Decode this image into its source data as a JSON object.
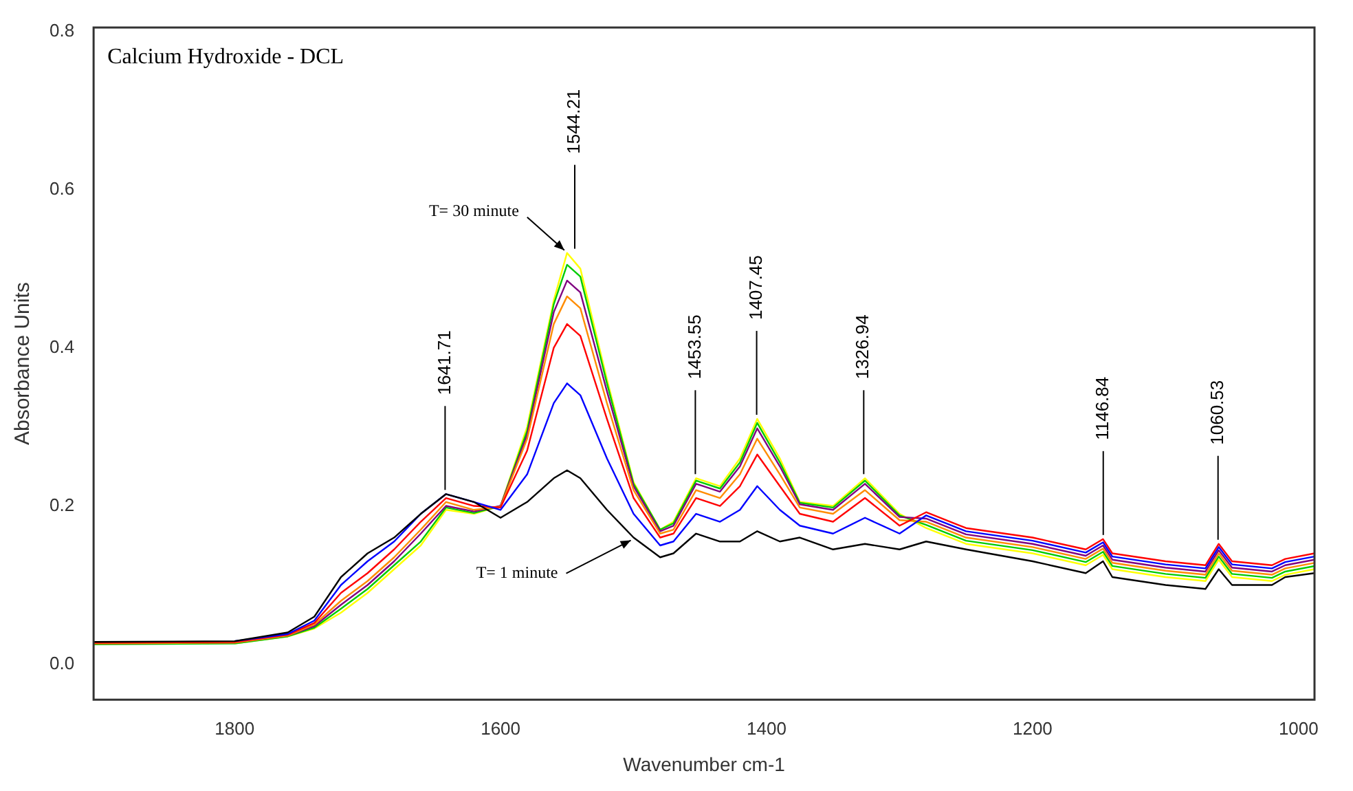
{
  "chart_data": {
    "type": "line",
    "title": "Calcium Hydroxide - DCL",
    "xlabel": "Wavenumber cm-1",
    "ylabel": "Absorbance Units",
    "x": [
      1906,
      1800,
      1760,
      1740,
      1720,
      1700,
      1680,
      1660,
      1641,
      1620,
      1600,
      1580,
      1560,
      1550,
      1540,
      1520,
      1500,
      1480,
      1470,
      1453,
      1435,
      1420,
      1407,
      1390,
      1375,
      1350,
      1326,
      1300,
      1280,
      1250,
      1200,
      1160,
      1147,
      1140,
      1100,
      1070,
      1060,
      1050,
      1020,
      1010,
      988
    ],
    "series": [
      {
        "color": "#000000",
        "values": [
          0.028,
          0.029,
          0.04,
          0.06,
          0.11,
          0.14,
          0.16,
          0.19,
          0.215,
          0.205,
          0.185,
          0.205,
          0.235,
          0.245,
          0.235,
          0.195,
          0.16,
          0.135,
          0.14,
          0.165,
          0.155,
          0.155,
          0.168,
          0.155,
          0.16,
          0.145,
          0.152,
          0.145,
          0.155,
          0.145,
          0.13,
          0.115,
          0.13,
          0.11,
          0.1,
          0.095,
          0.12,
          0.1,
          0.1,
          0.11,
          0.115
        ]
      },
      {
        "color": "#0000ff",
        "values": [
          null,
          0.029,
          0.038,
          0.055,
          0.1,
          0.13,
          0.155,
          0.19,
          0.215,
          0.205,
          0.195,
          0.24,
          0.33,
          0.355,
          0.34,
          0.26,
          0.19,
          0.15,
          0.155,
          0.19,
          0.18,
          0.195,
          0.225,
          0.195,
          0.175,
          0.165,
          0.185,
          0.165,
          0.188,
          0.168,
          0.156,
          0.141,
          0.154,
          0.136,
          0.126,
          0.121,
          0.148,
          0.126,
          0.121,
          0.129,
          0.136
        ]
      },
      {
        "color": "#ff0000",
        "values": [
          0.027,
          0.028,
          0.037,
          0.052,
          0.09,
          0.115,
          0.145,
          0.18,
          0.21,
          0.2,
          0.198,
          0.27,
          0.4,
          0.43,
          0.415,
          0.31,
          0.21,
          0.16,
          0.165,
          0.21,
          0.2,
          0.225,
          0.265,
          0.225,
          0.19,
          0.18,
          0.21,
          0.175,
          0.192,
          0.172,
          0.16,
          0.145,
          0.158,
          0.14,
          0.13,
          0.125,
          0.152,
          0.13,
          0.125,
          0.133,
          0.14
        ]
      },
      {
        "color": "#ff8c00",
        "values": [
          0.026,
          0.027,
          0.036,
          0.05,
          0.08,
          0.105,
          0.135,
          0.17,
          0.205,
          0.195,
          0.199,
          0.285,
          0.43,
          0.465,
          0.45,
          0.33,
          0.22,
          0.165,
          0.17,
          0.22,
          0.21,
          0.24,
          0.285,
          0.24,
          0.198,
          0.19,
          0.22,
          0.182,
          0.18,
          0.16,
          0.148,
          0.133,
          0.146,
          0.128,
          0.118,
          0.113,
          0.14,
          0.118,
          0.113,
          0.121,
          0.128
        ]
      },
      {
        "color": "#800080",
        "values": [
          0.026,
          0.027,
          0.036,
          0.048,
          0.075,
          0.1,
          0.13,
          0.165,
          0.2,
          0.193,
          0.2,
          0.29,
          0.445,
          0.485,
          0.47,
          0.345,
          0.225,
          0.168,
          0.175,
          0.228,
          0.218,
          0.25,
          0.298,
          0.25,
          0.202,
          0.195,
          0.228,
          0.186,
          0.184,
          0.164,
          0.152,
          0.137,
          0.15,
          0.132,
          0.122,
          0.117,
          0.144,
          0.122,
          0.117,
          0.125,
          0.132
        ]
      },
      {
        "color": "#00cc00",
        "values": [
          0.025,
          0.026,
          0.035,
          0.046,
          0.07,
          0.095,
          0.125,
          0.155,
          0.198,
          0.191,
          0.2,
          0.295,
          0.455,
          0.505,
          0.49,
          0.355,
          0.228,
          0.17,
          0.178,
          0.232,
          0.222,
          0.255,
          0.305,
          0.255,
          0.204,
          0.198,
          0.232,
          0.188,
          0.176,
          0.156,
          0.144,
          0.129,
          0.142,
          0.124,
          0.114,
          0.109,
          0.136,
          0.114,
          0.109,
          0.117,
          0.124
        ]
      },
      {
        "color": "#ffff00",
        "values": [
          null,
          0.026,
          0.035,
          0.045,
          0.065,
          0.09,
          0.12,
          0.15,
          0.195,
          0.19,
          0.2,
          0.3,
          0.46,
          0.52,
          0.5,
          0.36,
          0.23,
          0.17,
          0.18,
          0.235,
          0.225,
          0.26,
          0.31,
          0.26,
          0.205,
          0.2,
          0.235,
          0.19,
          0.172,
          0.152,
          0.14,
          0.125,
          0.138,
          0.12,
          0.11,
          0.105,
          0.132,
          0.11,
          0.105,
          0.113,
          0.12
        ]
      }
    ],
    "xlim": [
      1906,
      988
    ],
    "xticks": [
      1800,
      1600,
      1400,
      1200,
      1000
    ],
    "ylim": [
      -0.045,
      0.805
    ],
    "yticks": [
      {
        "value": 0,
        "label": "0.0"
      },
      {
        "value": 0.2,
        "label": "0.2"
      },
      {
        "value": 0.4,
        "label": "0.4"
      },
      {
        "value": 0.6,
        "label": "0.6"
      },
      {
        "value": 0.8,
        "label": "0.8"
      }
    ],
    "grid": false,
    "legend": false,
    "marker": "none",
    "line_style": "solid",
    "annotations": [
      {
        "text": "1641.71",
        "x": 1641.71,
        "y": 0.215
      },
      {
        "text": "1544.21",
        "x": 1544.21,
        "y": 0.52
      },
      {
        "text": "1453.55",
        "x": 1453.55,
        "y": 0.235
      },
      {
        "text": "1407.45",
        "x": 1407.45,
        "y": 0.31
      },
      {
        "text": "1326.94",
        "x": 1326.94,
        "y": 0.235
      },
      {
        "text": "1146.84",
        "x": 1146.84,
        "y": 0.158
      },
      {
        "text": "1060.53",
        "x": 1060.53,
        "y": 0.152
      },
      {
        "text": "T= 30 minute",
        "x": 1550,
        "y": 0.52
      },
      {
        "text": "T= 1 minute",
        "x": 1500,
        "y": 0.16
      }
    ]
  }
}
